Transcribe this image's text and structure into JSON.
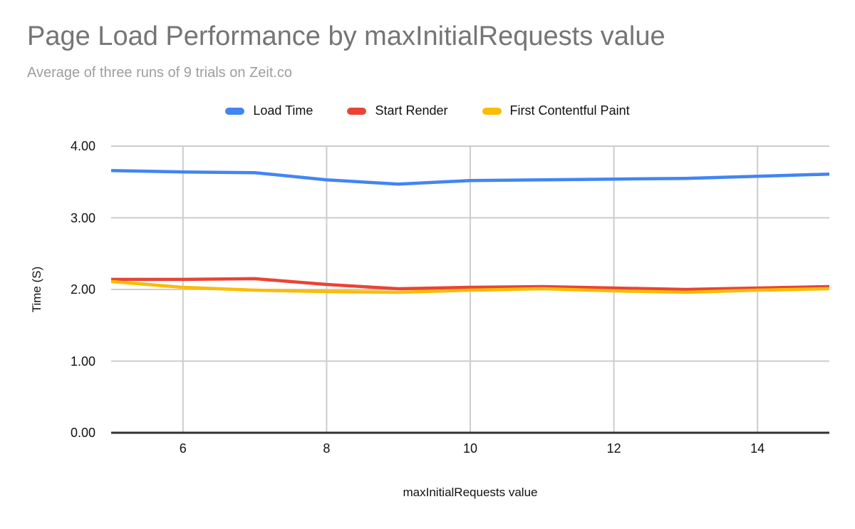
{
  "colors": {
    "load_time": "#4285F4",
    "start_render": "#EA4335",
    "first_contentful_paint": "#FBBC04",
    "title_text": "#757575",
    "subtitle_text": "#9E9E9E",
    "axis_text": "#111111",
    "gridline": "#CCCCCC",
    "axis_line": "#333333",
    "background": "#FFFFFF"
  },
  "chart_data": {
    "type": "line",
    "title": "Page Load Performance by maxInitialRequests value",
    "subtitle": "Average of three runs of 9 trials on Zeit.co",
    "xlabel": "maxInitialRequests value",
    "ylabel": "Time (S)",
    "xlim": [
      5,
      15
    ],
    "ylim": [
      0,
      4
    ],
    "x_ticks": [
      6,
      8,
      10,
      12,
      14
    ],
    "y_ticks": [
      "0.00",
      "1.00",
      "2.00",
      "3.00",
      "4.00"
    ],
    "grid": true,
    "legend_position": "top",
    "x": [
      5,
      6,
      7,
      8,
      9,
      10,
      11,
      12,
      13,
      14,
      15
    ],
    "series": [
      {
        "name": "Load Time",
        "color": "#4285F4",
        "values": [
          3.66,
          3.64,
          3.63,
          3.53,
          3.47,
          3.52,
          3.53,
          3.54,
          3.55,
          3.58,
          3.61
        ]
      },
      {
        "name": "Start Render",
        "color": "#EA4335",
        "values": [
          2.14,
          2.14,
          2.15,
          2.07,
          2.01,
          2.03,
          2.04,
          2.02,
          2.0,
          2.02,
          2.04
        ]
      },
      {
        "name": "First Contentful Paint",
        "color": "#FBBC04",
        "values": [
          2.11,
          2.03,
          1.99,
          1.97,
          1.96,
          1.99,
          2.01,
          1.98,
          1.96,
          1.99,
          2.01
        ]
      }
    ]
  }
}
